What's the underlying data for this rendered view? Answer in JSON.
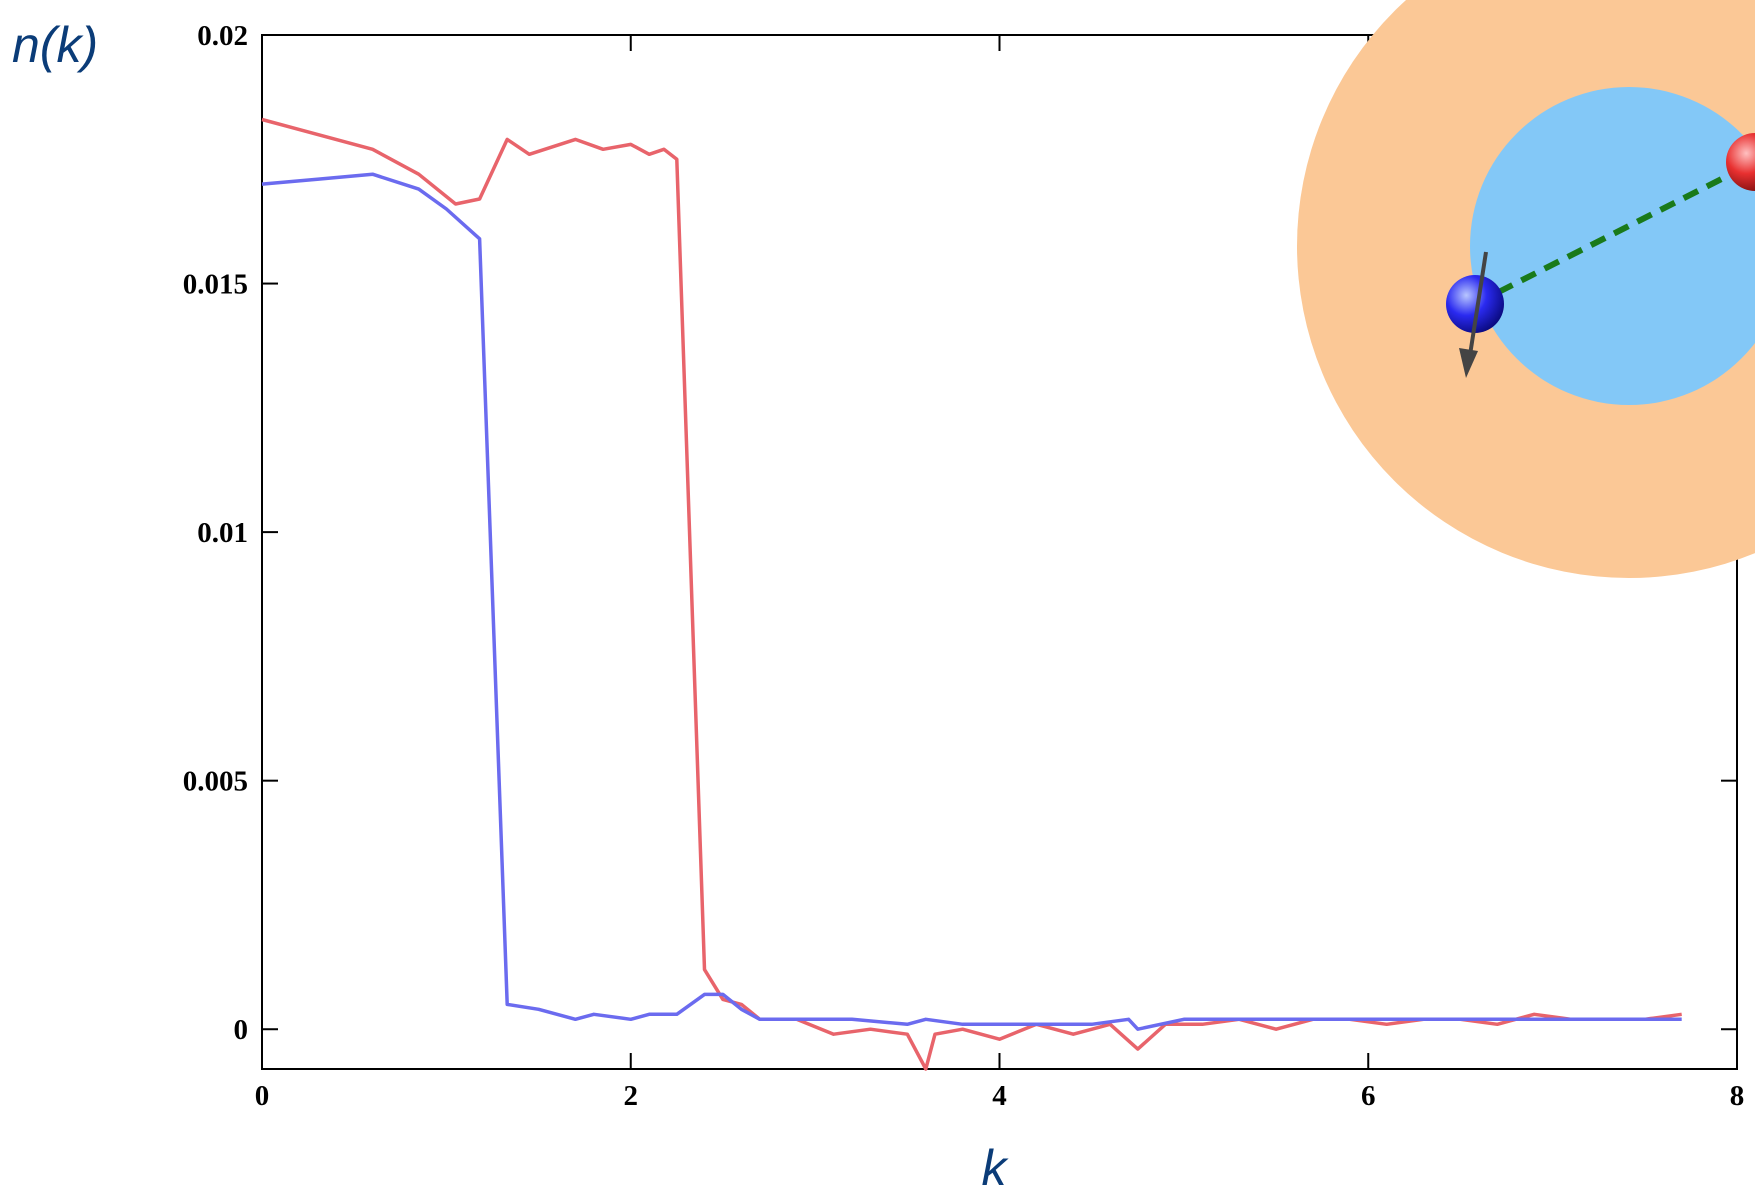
{
  "chart_data": {
    "type": "line",
    "xlabel": "k",
    "ylabel": "n(k)",
    "xlim": [
      0,
      8
    ],
    "xticks": [
      0,
      2,
      4,
      6,
      8
    ],
    "ylim": [
      -0.0008,
      0.02
    ],
    "yticks": [
      0,
      0.005,
      0.01,
      0.015,
      0.02
    ],
    "series": [
      {
        "color": "#e8646b",
        "x": [
          0,
          0.6,
          0.85,
          1.05,
          1.18,
          1.33,
          1.45,
          1.7,
          1.85,
          2.0,
          2.1,
          2.18,
          2.25,
          2.4,
          2.5,
          2.6,
          2.7,
          2.9,
          3.1,
          3.3,
          3.5,
          3.6,
          3.65,
          3.8,
          4.0,
          4.2,
          4.4,
          4.6,
          4.75,
          4.9,
          5.1,
          5.3,
          5.5,
          5.7,
          5.9,
          6.1,
          6.3,
          6.5,
          6.7,
          6.9,
          7.1,
          7.3,
          7.5,
          7.7
        ],
        "values": [
          0.0183,
          0.0177,
          0.0172,
          0.0166,
          0.0167,
          0.0179,
          0.0176,
          0.0179,
          0.0177,
          0.0178,
          0.0176,
          0.0177,
          0.0175,
          0.0012,
          0.0006,
          0.0005,
          0.0002,
          0.0002,
          -0.0001,
          0.0,
          -0.0001,
          -0.0008,
          -0.0001,
          0.0,
          -0.0002,
          0.0001,
          -0.0001,
          0.0001,
          -0.0004,
          0.0001,
          0.0001,
          0.0002,
          0.0,
          0.0002,
          0.0002,
          0.0001,
          0.0002,
          0.0002,
          0.0001,
          0.0003,
          0.0002,
          0.0002,
          0.0002,
          0.0003
        ]
      },
      {
        "color": "#6b6bef",
        "x": [
          0,
          0.3,
          0.6,
          0.85,
          1.0,
          1.18,
          1.33,
          1.5,
          1.7,
          1.8,
          2.0,
          2.1,
          2.25,
          2.4,
          2.5,
          2.6,
          2.7,
          3.0,
          3.2,
          3.5,
          3.6,
          3.8,
          4.0,
          4.2,
          4.5,
          4.7,
          4.75,
          5.0,
          5.3,
          5.6,
          6.0,
          6.3,
          6.6,
          6.9,
          7.2,
          7.5,
          7.7
        ],
        "values": [
          0.017,
          0.0171,
          0.0172,
          0.0169,
          0.0165,
          0.0159,
          0.0005,
          0.0004,
          0.0002,
          0.0003,
          0.0002,
          0.0003,
          0.0003,
          0.0007,
          0.0007,
          0.0004,
          0.0002,
          0.0002,
          0.0002,
          0.0001,
          0.0002,
          0.0001,
          0.0001,
          0.0001,
          0.0001,
          0.0002,
          0.0,
          0.0002,
          0.0002,
          0.0002,
          0.0002,
          0.0002,
          0.0002,
          0.0002,
          0.0002,
          0.0002,
          0.0002
        ]
      }
    ]
  }
}
